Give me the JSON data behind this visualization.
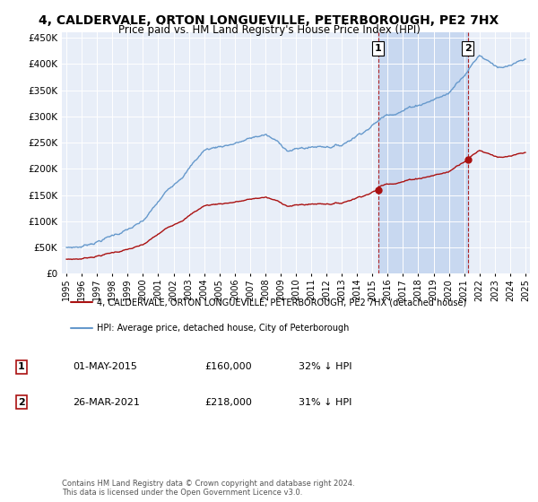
{
  "title": "4, CALDERVALE, ORTON LONGUEVILLE, PETERBOROUGH, PE2 7HX",
  "subtitle": "Price paid vs. HM Land Registry's House Price Index (HPI)",
  "title_fontsize": 10,
  "subtitle_fontsize": 8.5,
  "background_color": "#ffffff",
  "plot_bg_color": "#e8eef8",
  "shade_color": "#c8d8f0",
  "grid_color": "#ffffff",
  "hpi_color": "#6699cc",
  "price_color": "#aa1111",
  "marker1_x": 2015.37,
  "marker2_x": 2021.23,
  "marker1_label": "01-MAY-2015",
  "marker1_price": "£160,000",
  "marker1_pct": "32% ↓ HPI",
  "marker2_label": "26-MAR-2021",
  "marker2_price": "£218,000",
  "marker2_pct": "31% ↓ HPI",
  "footer1": "Contains HM Land Registry data © Crown copyright and database right 2024.",
  "footer2": "This data is licensed under the Open Government Licence v3.0.",
  "ylim": [
    0,
    460000
  ],
  "yticks": [
    0,
    50000,
    100000,
    150000,
    200000,
    250000,
    300000,
    350000,
    400000,
    450000
  ],
  "xlim": [
    1994.7,
    2025.3
  ],
  "xticks": [
    1995,
    1996,
    1997,
    1998,
    1999,
    2000,
    2001,
    2002,
    2003,
    2004,
    2005,
    2006,
    2007,
    2008,
    2009,
    2010,
    2011,
    2012,
    2013,
    2014,
    2015,
    2016,
    2017,
    2018,
    2019,
    2020,
    2021,
    2022,
    2023,
    2024,
    2025
  ],
  "legend_label_red": "4, CALDERVALE, ORTON LONGUEVILLE, PETERBOROUGH, PE2 7HX (detached house)",
  "legend_label_blue": "HPI: Average price, detached house, City of Peterborough"
}
